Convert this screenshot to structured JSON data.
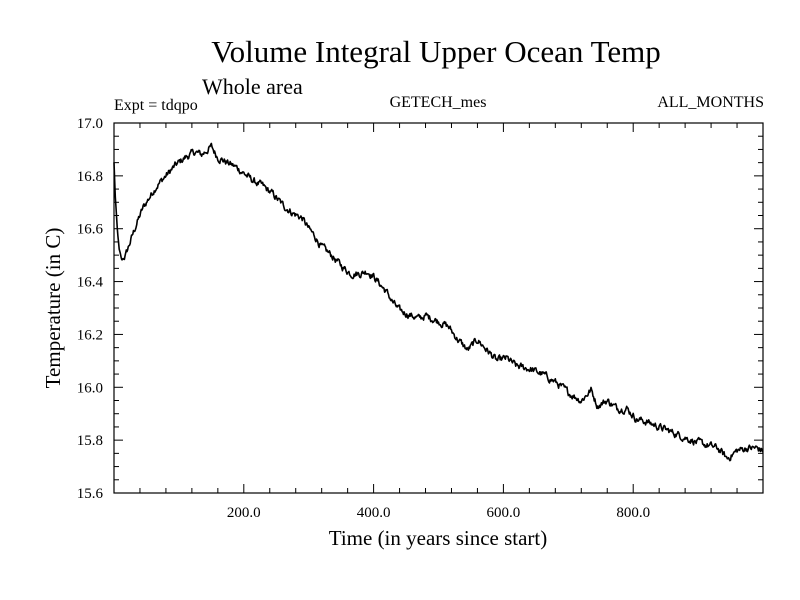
{
  "header": {
    "title": "Volume Integral Upper Ocean Temp",
    "subtitle": "Whole area",
    "expt": "Expt = tdqpo",
    "dataset": "GETECH_mes",
    "months": "ALL_MONTHS"
  },
  "chart_data": {
    "type": "line",
    "title": "Volume Integral Upper Ocean Temp",
    "subtitle": "Whole area",
    "xlabel": "Time (in years since start)",
    "ylabel": "Temperature (in C)",
    "xlim": [
      0,
      1000
    ],
    "ylim": [
      15.6,
      17.0
    ],
    "x_ticks": [
      {
        "value": 200,
        "label": "200.0"
      },
      {
        "value": 400,
        "label": "400.0"
      },
      {
        "value": 600,
        "label": "600.0"
      },
      {
        "value": 800,
        "label": "800.0"
      }
    ],
    "y_ticks": [
      {
        "value": 15.6,
        "label": "15.6"
      },
      {
        "value": 15.8,
        "label": "15.8"
      },
      {
        "value": 16.0,
        "label": "16.0"
      },
      {
        "value": 16.2,
        "label": "16.2"
      },
      {
        "value": 16.4,
        "label": "16.4"
      },
      {
        "value": 16.6,
        "label": "16.6"
      },
      {
        "value": 16.8,
        "label": "16.8"
      },
      {
        "value": 17.0,
        "label": "17.0"
      }
    ],
    "grid": false,
    "line_color": "#000000",
    "series": [
      {
        "x": [
          0,
          2,
          5,
          8,
          12,
          18,
          25,
          35,
          45,
          55,
          65,
          80,
          95,
          110,
          125,
          135,
          145,
          150,
          160,
          175,
          190,
          200,
          215,
          230,
          245,
          260,
          275,
          290,
          300,
          310,
          320,
          335,
          350,
          365,
          380,
          390,
          400,
          410,
          420,
          430,
          440,
          450,
          460,
          470,
          480,
          490,
          500,
          515,
          530,
          545,
          560,
          575,
          590,
          605,
          620,
          640,
          660,
          680,
          700,
          720,
          735,
          745,
          760,
          775,
          790,
          805,
          820,
          840,
          860,
          880,
          900,
          915,
          930,
          945,
          960,
          975,
          990,
          1000
        ],
        "y": [
          16.85,
          16.72,
          16.6,
          16.52,
          16.48,
          16.5,
          16.55,
          16.62,
          16.68,
          16.72,
          16.76,
          16.8,
          16.84,
          16.87,
          16.89,
          16.88,
          16.9,
          16.91,
          16.87,
          16.85,
          16.83,
          16.81,
          16.78,
          16.76,
          16.73,
          16.69,
          16.66,
          16.64,
          16.6,
          16.57,
          16.53,
          16.5,
          16.46,
          16.43,
          16.43,
          16.44,
          16.42,
          16.39,
          16.36,
          16.32,
          16.29,
          16.28,
          16.27,
          16.26,
          16.27,
          16.26,
          16.25,
          16.23,
          16.18,
          16.14,
          16.18,
          16.14,
          16.1,
          16.11,
          16.08,
          16.07,
          16.05,
          16.02,
          15.98,
          15.95,
          15.99,
          15.93,
          15.95,
          15.92,
          15.92,
          15.88,
          15.87,
          15.85,
          15.83,
          15.81,
          15.79,
          15.78,
          15.77,
          15.73,
          15.76,
          15.77,
          15.77,
          15.76
        ]
      }
    ]
  }
}
